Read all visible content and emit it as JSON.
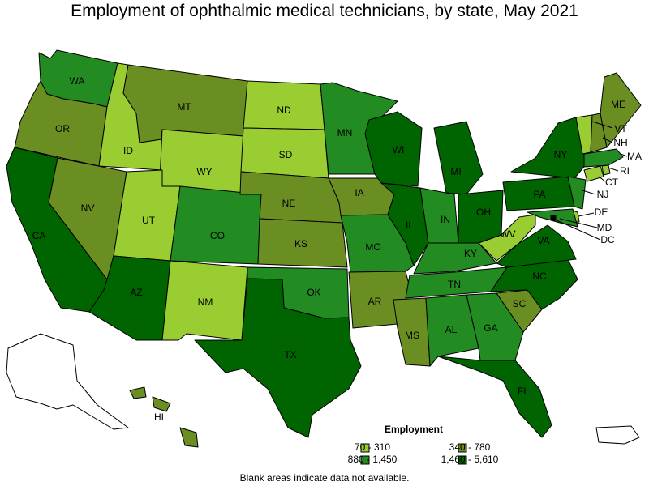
{
  "title": "Employment of ophthalmic medical technicians, by state, May 2021",
  "footnote": "Blank areas indicate data not available.",
  "colors": {
    "c1": "#9acd32",
    "c2": "#6b8e23",
    "c3": "#228b22",
    "c4": "#006400",
    "blank": "#ffffff"
  },
  "legend": {
    "title": "Employment",
    "items": [
      {
        "label": "70 - 310",
        "color_key": "c1"
      },
      {
        "label": "340 - 780",
        "color_key": "c2"
      },
      {
        "label": "880 - 1,450",
        "color_key": "c3"
      },
      {
        "label": "1,460 - 5,610",
        "color_key": "c4"
      }
    ]
  },
  "states": [
    {
      "abbr": "WA",
      "color_key": "c3"
    },
    {
      "abbr": "OR",
      "color_key": "c2"
    },
    {
      "abbr": "CA",
      "color_key": "c4"
    },
    {
      "abbr": "ID",
      "color_key": "c1"
    },
    {
      "abbr": "NV",
      "color_key": "c2"
    },
    {
      "abbr": "MT",
      "color_key": "c2"
    },
    {
      "abbr": "WY",
      "color_key": "c1"
    },
    {
      "abbr": "UT",
      "color_key": "c1"
    },
    {
      "abbr": "AZ",
      "color_key": "c4"
    },
    {
      "abbr": "CO",
      "color_key": "c3"
    },
    {
      "abbr": "NM",
      "color_key": "c1"
    },
    {
      "abbr": "ND",
      "color_key": "c1"
    },
    {
      "abbr": "SD",
      "color_key": "c1"
    },
    {
      "abbr": "NE",
      "color_key": "c2"
    },
    {
      "abbr": "KS",
      "color_key": "c2"
    },
    {
      "abbr": "OK",
      "color_key": "c3"
    },
    {
      "abbr": "TX",
      "color_key": "c4"
    },
    {
      "abbr": "MN",
      "color_key": "c3"
    },
    {
      "abbr": "IA",
      "color_key": "c2"
    },
    {
      "abbr": "MO",
      "color_key": "c3"
    },
    {
      "abbr": "AR",
      "color_key": "c2"
    },
    {
      "abbr": "WI",
      "color_key": "c4"
    },
    {
      "abbr": "IL",
      "color_key": "c4"
    },
    {
      "abbr": "MI",
      "color_key": "c4"
    },
    {
      "abbr": "IN",
      "color_key": "c3"
    },
    {
      "abbr": "OH",
      "color_key": "c4"
    },
    {
      "abbr": "KY",
      "color_key": "c3"
    },
    {
      "abbr": "TN",
      "color_key": "c3"
    },
    {
      "abbr": "MS",
      "color_key": "c2"
    },
    {
      "abbr": "AL",
      "color_key": "c3"
    },
    {
      "abbr": "GA",
      "color_key": "c3"
    },
    {
      "abbr": "FL",
      "color_key": "c4"
    },
    {
      "abbr": "SC",
      "color_key": "c2"
    },
    {
      "abbr": "NC",
      "color_key": "c4"
    },
    {
      "abbr": "VA",
      "color_key": "c4"
    },
    {
      "abbr": "WV",
      "color_key": "c1"
    },
    {
      "abbr": "PA",
      "color_key": "c4"
    },
    {
      "abbr": "NY",
      "color_key": "c4"
    },
    {
      "abbr": "NJ",
      "color_key": "c3"
    },
    {
      "abbr": "DE",
      "color_key": "c1"
    },
    {
      "abbr": "MD",
      "color_key": "c3"
    },
    {
      "abbr": "DC",
      "color_key": "c4"
    },
    {
      "abbr": "CT",
      "color_key": "c1"
    },
    {
      "abbr": "RI",
      "color_key": "c1"
    },
    {
      "abbr": "MA",
      "color_key": "c3"
    },
    {
      "abbr": "VT",
      "color_key": "c1"
    },
    {
      "abbr": "NH",
      "color_key": "c2"
    },
    {
      "abbr": "ME",
      "color_key": "c2"
    },
    {
      "abbr": "HI",
      "color_key": "c2"
    },
    {
      "abbr": "AK",
      "color_key": "blank"
    },
    {
      "abbr": "PR",
      "color_key": "blank"
    }
  ]
}
